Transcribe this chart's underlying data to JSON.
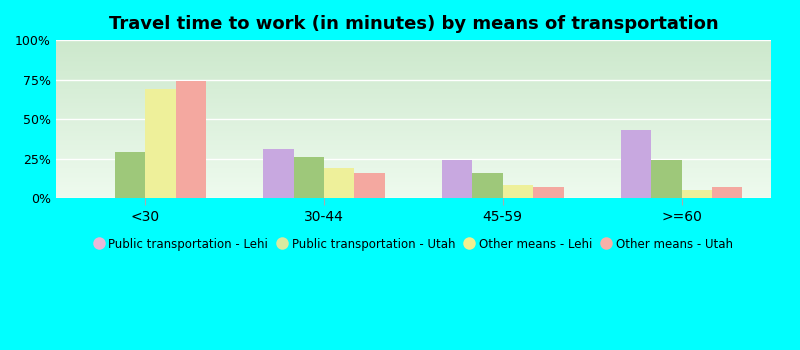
{
  "title": "Travel time to work (in minutes) by means of transportation",
  "categories": [
    "<30",
    "30-44",
    "45-59",
    ">=60"
  ],
  "series_order": [
    "Public transportation - Lehi",
    "Public transportation - Utah",
    "Other means - Lehi",
    "Other means - Utah"
  ],
  "series": {
    "Public transportation - Lehi": [
      0,
      31,
      24,
      43
    ],
    "Public transportation - Utah": [
      29,
      26,
      16,
      24
    ],
    "Other means - Lehi": [
      69,
      19,
      8,
      5
    ],
    "Other means - Utah": [
      74,
      16,
      7,
      7
    ]
  },
  "bar_colors": {
    "Public transportation - Lehi": "#c8a8e0",
    "Public transportation - Utah": "#9ec87a",
    "Other means - Lehi": "#eef09a",
    "Other means - Utah": "#f4a8a0"
  },
  "legend_marker_colors": {
    "Public transportation - Lehi": "#e8b8d8",
    "Public transportation - Utah": "#d8eaa0",
    "Other means - Lehi": "#f0f090",
    "Other means - Utah": "#f8b0a8"
  },
  "ylim": [
    0,
    100
  ],
  "yticks": [
    0,
    25,
    50,
    75,
    100
  ],
  "ytick_labels": [
    "0%",
    "25%",
    "50%",
    "75%",
    "100%"
  ],
  "background_color": "#00FFFF",
  "grad_top": "#cce8cc",
  "grad_bottom": "#eefaee",
  "title_fontsize": 13,
  "bar_width": 0.17,
  "figsize": [
    8.0,
    3.5
  ],
  "dpi": 100
}
